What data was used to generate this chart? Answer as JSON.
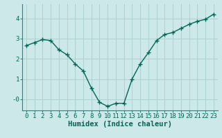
{
  "xlabel": "Humidex (Indice chaleur)",
  "ylabel": "",
  "bg_color": "#cce8e8",
  "grid_color": "#aacccc",
  "line_color": "#006655",
  "marker_color": "#006655",
  "x_values": [
    0,
    1,
    2,
    3,
    4,
    5,
    6,
    7,
    8,
    9,
    10,
    11,
    12,
    13,
    14,
    15,
    16,
    17,
    18,
    19,
    20,
    21,
    22,
    23
  ],
  "y_values": [
    2.65,
    2.8,
    2.95,
    2.9,
    2.45,
    2.2,
    1.75,
    1.4,
    0.55,
    -0.15,
    -0.35,
    -0.2,
    -0.2,
    1.0,
    1.75,
    2.3,
    2.9,
    3.2,
    3.3,
    3.5,
    3.7,
    3.85,
    3.95,
    4.2
  ],
  "ylim": [
    -0.55,
    4.7
  ],
  "xlim": [
    -0.5,
    23.5
  ],
  "yticks": [
    0,
    1,
    2,
    3,
    4
  ],
  "ytick_labels": [
    "-0",
    "1",
    "2",
    "3",
    "4"
  ],
  "xticks": [
    0,
    1,
    2,
    3,
    4,
    5,
    6,
    7,
    8,
    9,
    10,
    11,
    12,
    13,
    14,
    15,
    16,
    17,
    18,
    19,
    20,
    21,
    22,
    23
  ],
  "tick_fontsize": 6.5,
  "xlabel_fontsize": 7.5,
  "marker_size": 4,
  "line_width": 1.0
}
